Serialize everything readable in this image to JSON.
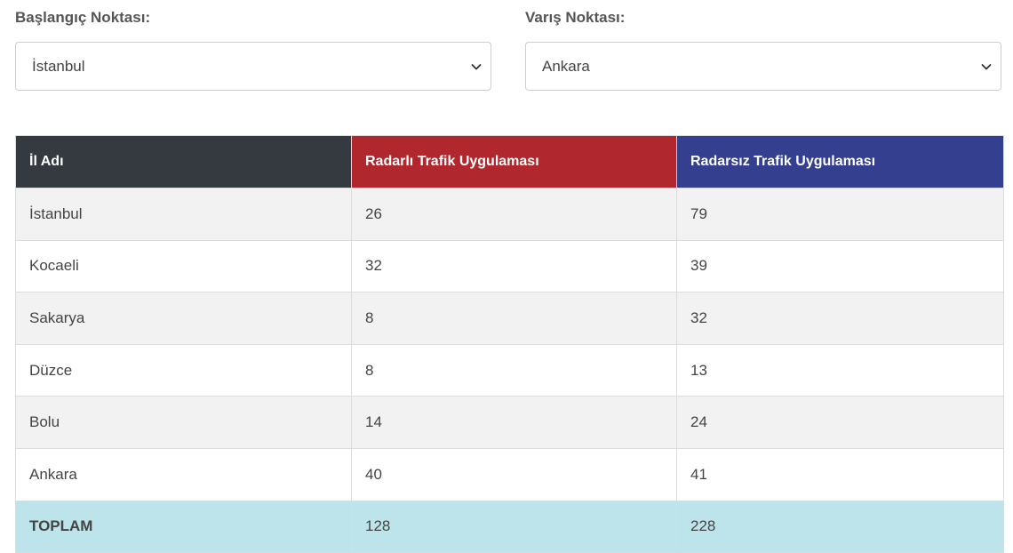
{
  "selectors": {
    "start": {
      "label": "Başlangıç Noktası:",
      "value": "İstanbul"
    },
    "end": {
      "label": "Varış Noktası:",
      "value": "Ankara"
    }
  },
  "table": {
    "headers": {
      "il": "İl Adı",
      "radarli": "Radarlı Trafik Uygulaması",
      "radarsiz": "Radarsız Trafik Uygulaması"
    },
    "rows": [
      {
        "il": "İstanbul",
        "radarli": "26",
        "radarsiz": "79"
      },
      {
        "il": "Kocaeli",
        "radarli": "32",
        "radarsiz": "39"
      },
      {
        "il": "Sakarya",
        "radarli": "8",
        "radarsiz": "32"
      },
      {
        "il": "Düzce",
        "radarli": "8",
        "radarsiz": "13"
      },
      {
        "il": "Bolu",
        "radarli": "14",
        "radarsiz": "24"
      },
      {
        "il": "Ankara",
        "radarli": "40",
        "radarsiz": "41"
      }
    ],
    "total": {
      "il": "TOPLAM",
      "radarli": "128",
      "radarsiz": "228"
    }
  },
  "colors": {
    "header_il": "#343a40",
    "header_radarli": "#b0272d",
    "header_radarsiz": "#343f8f",
    "total_row": "#bde4ea",
    "odd_row": "#f2f2f2"
  },
  "icons": {
    "select_arrow": "chevron-down-icon"
  }
}
